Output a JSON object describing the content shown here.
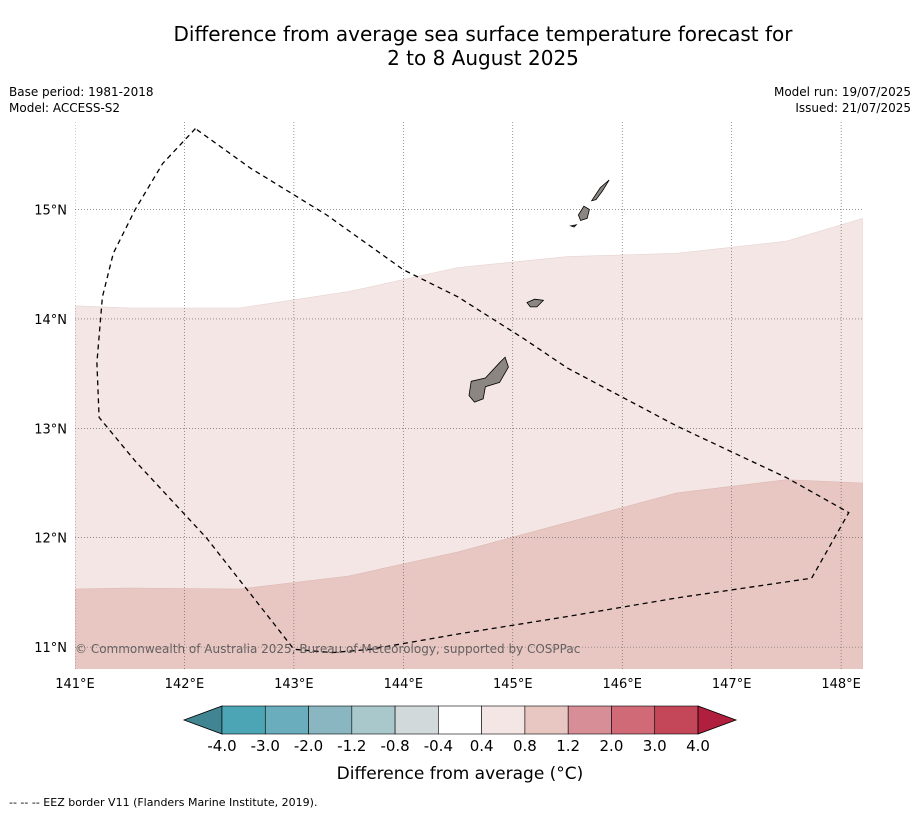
{
  "title_line1": "Difference from average sea surface temperature forecast for",
  "title_line2": "2 to 8 August 2025",
  "base_period": "Base period: 1981-2018",
  "model": "Model: ACCESS-S2",
  "model_run": "Model run: 19/07/2025",
  "issued": "Issued: 21/07/2025",
  "copyright": "© Commonwealth of Australia 2025, Bureau of Meteorology, supported by COSPPac",
  "map": {
    "x_ticks": [
      141,
      142,
      143,
      144,
      145,
      146,
      147,
      148
    ],
    "x_tick_labels": [
      "141°E",
      "142°E",
      "143°E",
      "144°E",
      "145°E",
      "146°E",
      "147°E",
      "148°E"
    ],
    "y_ticks": [
      11,
      12,
      13,
      14,
      15
    ],
    "y_tick_labels": [
      "11°N",
      "12°N",
      "13°N",
      "14°N",
      "15°N"
    ],
    "lon_range": [
      141,
      148.2
    ],
    "lat_range": [
      10.8,
      15.8
    ],
    "anomaly_0_4_to_0_8_boundary": [
      [
        141,
        14.12
      ],
      [
        141.5,
        14.1
      ],
      [
        142.5,
        14.1
      ],
      [
        143.5,
        14.25
      ],
      [
        144.5,
        14.47
      ],
      [
        145.5,
        14.57
      ],
      [
        146.5,
        14.6
      ],
      [
        147.5,
        14.71
      ],
      [
        148.2,
        14.92
      ]
    ],
    "anomaly_0_8_to_1_2_boundary": [
      [
        141,
        11.53
      ],
      [
        141.5,
        11.54
      ],
      [
        142.5,
        11.53
      ],
      [
        143.5,
        11.65
      ],
      [
        144.5,
        11.87
      ],
      [
        145.5,
        12.14
      ],
      [
        146.5,
        12.41
      ],
      [
        147.5,
        12.53
      ],
      [
        148.2,
        12.5
      ]
    ],
    "eez_border": [
      [
        142.1,
        15.74
      ],
      [
        141.8,
        15.42
      ],
      [
        141.55,
        15.0
      ],
      [
        141.35,
        14.6
      ],
      [
        141.25,
        14.2
      ],
      [
        141.2,
        13.6
      ],
      [
        141.22,
        13.1
      ],
      [
        141.55,
        12.7
      ],
      [
        142.2,
        12.0
      ],
      [
        142.75,
        11.3
      ],
      [
        143.0,
        10.98
      ],
      [
        143.35,
        10.95
      ],
      [
        143.7,
        10.98
      ],
      [
        144.5,
        11.12
      ],
      [
        145.5,
        11.28
      ],
      [
        146.5,
        11.45
      ],
      [
        147.73,
        11.63
      ],
      [
        148.07,
        12.23
      ],
      [
        147.5,
        12.55
      ],
      [
        146.5,
        13.02
      ],
      [
        145.5,
        13.55
      ],
      [
        145.1,
        13.82
      ],
      [
        144.5,
        14.2
      ],
      [
        144.0,
        14.45
      ],
      [
        143.3,
        14.95
      ],
      [
        142.6,
        15.38
      ],
      [
        142.1,
        15.74
      ]
    ],
    "islands": [
      [
        [
          144.62,
          13.43
        ],
        [
          144.75,
          13.46
        ],
        [
          144.88,
          13.6
        ],
        [
          144.93,
          13.65
        ],
        [
          144.96,
          13.56
        ],
        [
          144.88,
          13.42
        ],
        [
          144.75,
          13.38
        ],
        [
          144.73,
          13.27
        ],
        [
          144.65,
          13.24
        ],
        [
          144.6,
          13.3
        ]
      ],
      [
        [
          145.13,
          14.15
        ],
        [
          145.2,
          14.18
        ],
        [
          145.28,
          14.17
        ],
        [
          145.22,
          14.11
        ],
        [
          145.16,
          14.11
        ]
      ],
      [
        [
          145.6,
          14.95
        ],
        [
          145.65,
          15.03
        ],
        [
          145.7,
          15.0
        ],
        [
          145.68,
          14.92
        ],
        [
          145.62,
          14.9
        ]
      ],
      [
        [
          145.72,
          15.08
        ],
        [
          145.8,
          15.2
        ],
        [
          145.88,
          15.27
        ],
        [
          145.82,
          15.17
        ],
        [
          145.76,
          15.09
        ]
      ],
      [
        [
          145.53,
          14.85
        ],
        [
          145.58,
          14.86
        ],
        [
          145.56,
          14.84
        ]
      ]
    ],
    "colors": {
      "ocean_background": "#ffffff",
      "anomaly_0_4_to_0_8": "#f4e6e4",
      "anomaly_0_8_to_1_2": "#e8c7c3",
      "land": "#8c8683"
    }
  },
  "colorbar": {
    "tick_labels": [
      "-4.0",
      "-3.0",
      "-2.0",
      "-1.2",
      "-0.8",
      "-0.4",
      "0.4",
      "0.8",
      "1.2",
      "2.0",
      "3.0",
      "4.0"
    ],
    "colors": [
      "#418592",
      "#4ba5b4",
      "#6aaebd",
      "#8ab6c2",
      "#a9c8cb",
      "#d2d9db",
      "#ffffff",
      "#f4e6e4",
      "#e8c7c3",
      "#d88e96",
      "#cf6a76",
      "#c34759",
      "#b11f3e"
    ],
    "title": "Difference from average (°C)"
  },
  "footnote": "-- -- -- EEZ border V11 (Flanders Marine Institute, 2019)."
}
